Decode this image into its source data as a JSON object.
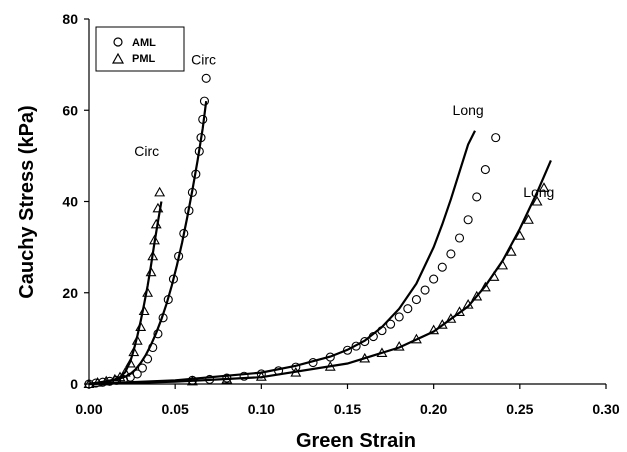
{
  "chart_data": {
    "type": "scatter",
    "title": "",
    "xlabel": "Green Strain",
    "ylabel": "Cauchy Stress (kPa)",
    "xlim": [
      0,
      0.3
    ],
    "ylim": [
      0,
      80
    ],
    "xticks": [
      "0.00",
      "0.05",
      "0.10",
      "0.15",
      "0.20",
      "0.25",
      "0.30"
    ],
    "yticks": [
      "0",
      "20",
      "40",
      "60",
      "80"
    ],
    "grid": false,
    "legend": {
      "placement": "top-left",
      "entries": [
        {
          "label": "AML",
          "marker": "circle"
        },
        {
          "label": "PML",
          "marker": "triangle"
        }
      ]
    },
    "annotations": [
      {
        "text": "Circ",
        "x": 0.0335,
        "y": 50
      },
      {
        "text": "Circ",
        "x": 0.0665,
        "y": 70
      },
      {
        "text": "Long",
        "x": 0.22,
        "y": 59
      },
      {
        "text": "Long",
        "x": 0.261,
        "y": 41
      }
    ],
    "series": [
      {
        "name": "AML",
        "kind": "points",
        "marker": "circle",
        "x": [
          0.0,
          0.004,
          0.008,
          0.012,
          0.016,
          0.02,
          0.024,
          0.028,
          0.031,
          0.034,
          0.037,
          0.04,
          0.043,
          0.046,
          0.049,
          0.052,
          0.055,
          0.058,
          0.06,
          0.062,
          0.064,
          0.065,
          0.066,
          0.067,
          0.068
        ],
        "y": [
          0.0,
          0.2,
          0.4,
          0.6,
          0.8,
          1.0,
          1.5,
          2.2,
          3.5,
          5.5,
          8.0,
          11.0,
          14.5,
          18.5,
          23.0,
          28.0,
          33.0,
          38.0,
          42.0,
          46.0,
          51.0,
          54.0,
          58.0,
          62.0,
          67.0
        ]
      },
      {
        "name": "PML",
        "kind": "points",
        "marker": "triangle",
        "x": [
          0.0,
          0.005,
          0.01,
          0.015,
          0.018,
          0.021,
          0.024,
          0.026,
          0.028,
          0.03,
          0.032,
          0.034,
          0.036,
          0.037,
          0.038,
          0.039,
          0.04,
          0.041
        ],
        "y": [
          0.0,
          0.3,
          0.6,
          1.0,
          1.5,
          2.5,
          4.5,
          7.0,
          9.5,
          12.5,
          16.0,
          20.0,
          24.5,
          28.0,
          31.5,
          35.0,
          38.5,
          42.0
        ]
      },
      {
        "name": "",
        "kind": "points",
        "marker": "circle",
        "x": [
          0.06,
          0.07,
          0.08,
          0.09,
          0.1,
          0.11,
          0.12,
          0.13,
          0.14,
          0.15,
          0.155,
          0.16,
          0.165,
          0.17,
          0.175,
          0.18,
          0.185,
          0.19,
          0.195,
          0.2,
          0.205,
          0.21,
          0.215,
          0.22,
          0.225,
          0.23,
          0.236
        ],
        "y": [
          0.8,
          1.0,
          1.3,
          1.7,
          2.2,
          2.9,
          3.7,
          4.7,
          5.9,
          7.4,
          8.3,
          9.3,
          10.4,
          11.7,
          13.1,
          14.7,
          16.5,
          18.5,
          20.6,
          23.0,
          25.6,
          28.5,
          32.0,
          36.0,
          41.0,
          47.0,
          54.0
        ]
      },
      {
        "name": "",
        "kind": "points",
        "marker": "triangle",
        "x": [
          0.06,
          0.08,
          0.1,
          0.12,
          0.14,
          0.16,
          0.17,
          0.18,
          0.19,
          0.2,
          0.205,
          0.21,
          0.215,
          0.22,
          0.225,
          0.23,
          0.235,
          0.24,
          0.245,
          0.25,
          0.255,
          0.26,
          0.264
        ],
        "y": [
          0.6,
          1.0,
          1.6,
          2.5,
          3.8,
          5.6,
          6.8,
          8.2,
          9.8,
          11.8,
          13.0,
          14.3,
          15.8,
          17.4,
          19.2,
          21.2,
          23.5,
          26.0,
          29.0,
          32.5,
          36.0,
          40.0,
          43.0
        ]
      },
      {
        "name": "",
        "kind": "line",
        "x": [
          0.0,
          0.005,
          0.01,
          0.015,
          0.018,
          0.021,
          0.024,
          0.027,
          0.03,
          0.033,
          0.036,
          0.039,
          0.042,
          0.045,
          0.048,
          0.051,
          0.054,
          0.057,
          0.06,
          0.063,
          0.066,
          0.068
        ],
        "y": [
          0.0,
          0.2,
          0.5,
          0.9,
          1.2,
          1.6,
          2.2,
          3.2,
          4.6,
          6.4,
          8.6,
          11.2,
          14.2,
          17.6,
          21.5,
          26.0,
          31.0,
          36.5,
          42.5,
          49.0,
          56.0,
          62.0
        ]
      },
      {
        "name": "",
        "kind": "line",
        "x": [
          0.0,
          0.005,
          0.01,
          0.015,
          0.018,
          0.021,
          0.024,
          0.026,
          0.028,
          0.03,
          0.032,
          0.034,
          0.036,
          0.038,
          0.04,
          0.042
        ],
        "y": [
          0.0,
          0.3,
          0.6,
          1.0,
          1.5,
          2.6,
          5.0,
          7.5,
          10.5,
          13.8,
          17.5,
          21.5,
          26.0,
          31.0,
          35.5,
          40.0
        ]
      },
      {
        "name": "",
        "kind": "line",
        "x": [
          0.0,
          0.05,
          0.1,
          0.12,
          0.14,
          0.15,
          0.16,
          0.17,
          0.18,
          0.19,
          0.2,
          0.205,
          0.21,
          0.215,
          0.22,
          0.224
        ],
        "y": [
          0.0,
          0.8,
          2.5,
          4.0,
          6.0,
          7.5,
          9.5,
          12.5,
          16.5,
          22.0,
          30.0,
          35.0,
          40.5,
          46.5,
          52.5,
          55.5
        ]
      },
      {
        "name": "",
        "kind": "line",
        "x": [
          0.0,
          0.05,
          0.1,
          0.15,
          0.18,
          0.2,
          0.22,
          0.23,
          0.24,
          0.25,
          0.26,
          0.268
        ],
        "y": [
          0.0,
          0.5,
          1.5,
          4.5,
          8.0,
          11.5,
          17.0,
          21.5,
          27.0,
          34.0,
          42.0,
          49.0
        ]
      }
    ]
  }
}
